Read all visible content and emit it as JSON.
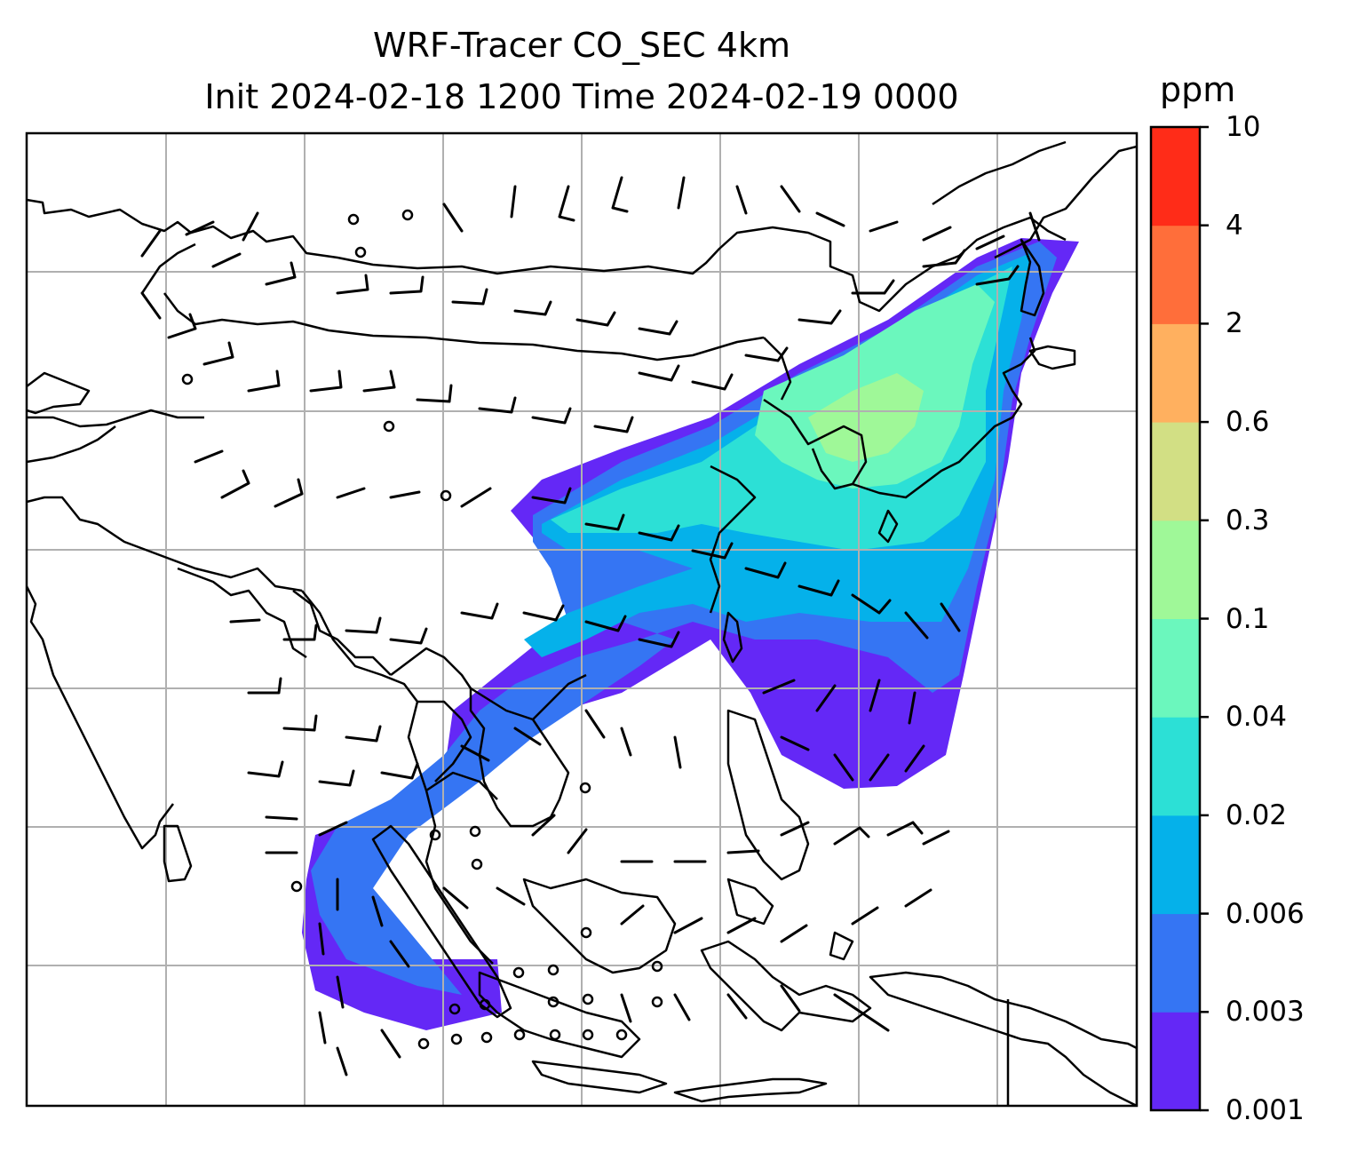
{
  "title": {
    "line1": "WRF-Tracer CO_SEC 4km",
    "line2": "Init 2024-02-18 1200 Time 2024-02-19 0000"
  },
  "colorbar": {
    "unit": "ppm",
    "ticks": [
      "0.001",
      "0.003",
      "0.006",
      "0.02",
      "0.04",
      "0.1",
      "0.3",
      "0.6",
      "2",
      "4",
      "10"
    ],
    "colors": [
      "#6428f6",
      "#3575f3",
      "#05b1ea",
      "#2ce0d6",
      "#6bf7bd",
      "#9ff898",
      "#d2df84",
      "#ffb05f",
      "#ff6e3a",
      "#ff2c18"
    ]
  },
  "map": {
    "projection": "lat-lon",
    "gridlines": true,
    "features": [
      "coastlines",
      "country-borders",
      "wind-barbs",
      "CO tracer concentration field"
    ]
  }
}
